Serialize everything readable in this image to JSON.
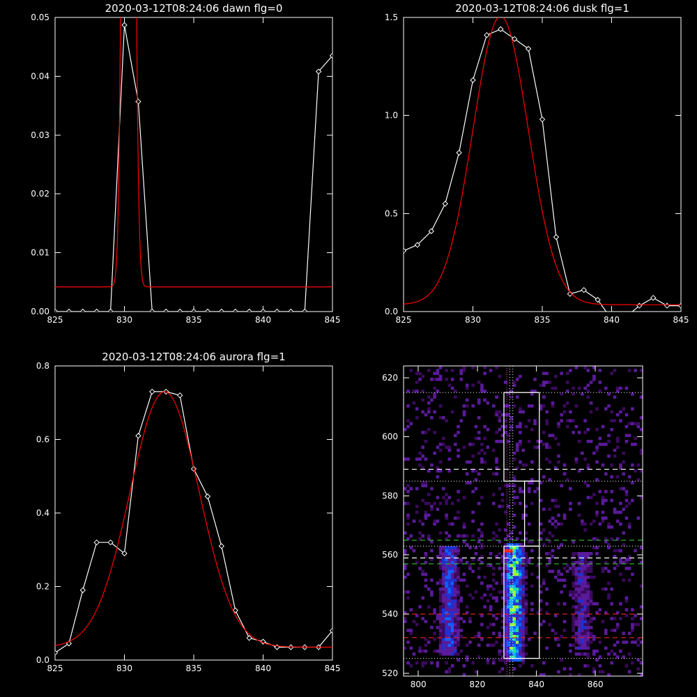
{
  "chart_data": [
    {
      "type": "line",
      "title": "2020-03-12T08:24:06 dawn flg=0",
      "xlim": [
        825,
        845
      ],
      "ylim": [
        0,
        0.05
      ],
      "xticks": [
        825,
        830,
        835,
        840,
        845
      ],
      "xtick_labels": [
        "825",
        "830",
        "835",
        "840",
        "845"
      ],
      "yticks": [
        0,
        0.01,
        0.02,
        0.03,
        0.04,
        0.05
      ],
      "ytick_labels": [
        "0.00",
        "0.01",
        "0.02",
        "0.03",
        "0.04",
        "0.05"
      ],
      "series": [
        {
          "role": "measured",
          "color": "#ffffff",
          "marker": "diamond",
          "x": [
            825,
            826,
            827,
            828,
            829,
            830,
            831,
            832,
            833,
            834,
            835,
            836,
            837,
            838,
            839,
            840,
            841,
            842,
            843,
            844,
            845
          ],
          "y": [
            0,
            0,
            0,
            0,
            0,
            0.0487,
            0.0357,
            0,
            0,
            0,
            0,
            0,
            0,
            0,
            0,
            0,
            0,
            0,
            0,
            0.0408,
            0.0435
          ]
        },
        {
          "role": "fit",
          "color": "#ff0000",
          "model": "gaussian",
          "center": 830.3,
          "sigma": 0.3,
          "amplitude": 0.3,
          "baseline": 0.0042
        }
      ]
    },
    {
      "type": "line",
      "title": "2020-03-12T08:24:06 dusk flg=1",
      "xlim": [
        825,
        845
      ],
      "ylim": [
        0,
        1.5
      ],
      "xticks": [
        825,
        830,
        835,
        840,
        845
      ],
      "xtick_labels": [
        "825",
        "830",
        "835",
        "840",
        "845"
      ],
      "yticks": [
        0,
        0.5,
        1.0,
        1.5
      ],
      "ytick_labels": [
        "0.0",
        "0.5",
        "1.0",
        "1.5"
      ],
      "series": [
        {
          "role": "measured",
          "color": "#ffffff",
          "marker": "diamond",
          "x": [
            825,
            826,
            827,
            828,
            829,
            830,
            831,
            832,
            833,
            834,
            835,
            836,
            837,
            838,
            839,
            840,
            841,
            842,
            843,
            844,
            845
          ],
          "y": [
            0.31,
            0.34,
            0.41,
            0.55,
            0.81,
            1.18,
            1.41,
            1.44,
            1.39,
            1.34,
            0.98,
            0.38,
            0.09,
            0.11,
            0.06,
            -0.04,
            -0.03,
            0.03,
            0.07,
            0.03,
            0.03
          ]
        },
        {
          "role": "fit",
          "color": "#ff0000",
          "model": "gaussian",
          "center": 832.0,
          "sigma": 2.0,
          "amplitude": 1.47,
          "baseline": 0.035
        }
      ]
    },
    {
      "type": "line",
      "title": "2020-03-12T08:24:06 aurora flg=1",
      "xlim": [
        825,
        845
      ],
      "ylim": [
        0,
        0.8
      ],
      "xticks": [
        825,
        830,
        835,
        840,
        845
      ],
      "xtick_labels": [
        "825",
        "830",
        "835",
        "840",
        "845"
      ],
      "yticks": [
        0,
        0.2,
        0.4,
        0.6,
        0.8
      ],
      "ytick_labels": [
        "0.0",
        "0.2",
        "0.4",
        "0.6",
        "0.8"
      ],
      "series": [
        {
          "role": "measured",
          "color": "#ffffff",
          "marker": "diamond",
          "x": [
            825,
            826,
            827,
            828,
            829,
            830,
            831,
            832,
            833,
            834,
            835,
            836,
            837,
            838,
            839,
            840,
            841,
            842,
            843,
            844,
            845
          ],
          "y": [
            0.02,
            0.045,
            0.19,
            0.32,
            0.32,
            0.29,
            0.61,
            0.73,
            0.73,
            0.72,
            0.52,
            0.445,
            0.31,
            0.135,
            0.06,
            0.05,
            0.035,
            0.035,
            0.035,
            0.035,
            0.08
          ]
        },
        {
          "role": "fit",
          "color": "#ff0000",
          "model": "gaussian",
          "center": 832.9,
          "sigma": 2.5,
          "amplitude": 0.695,
          "baseline": 0.035
        }
      ]
    },
    {
      "type": "heatmap",
      "title": "",
      "xlim": [
        795,
        876
      ],
      "ylim": [
        519,
        624
      ],
      "xticks": [
        800,
        820,
        840,
        860
      ],
      "xtick_labels": [
        "800",
        "820",
        "840",
        "860"
      ],
      "yticks": [
        520,
        540,
        560,
        580,
        600,
        620
      ],
      "ytick_labels": [
        "520",
        "540",
        "560",
        "580",
        "600",
        "620"
      ],
      "colormap": [
        "#000000",
        "#3a0a5c",
        "#5a1a9a",
        "#2030d0",
        "#1060ff",
        "#10b0ff",
        "#20e0a0",
        "#a0ff30",
        "#ffff00",
        "#ff2000"
      ],
      "bright_columns": [
        {
          "x_center": 810,
          "y_range": [
            526,
            562
          ],
          "strength": 0.5
        },
        {
          "x_center": 832,
          "y_range": [
            524,
            563
          ],
          "strength": 0.85
        },
        {
          "x_center": 855,
          "y_range": [
            528,
            560
          ],
          "strength": 0.35
        }
      ],
      "peak": {
        "x": 830,
        "y": 561
      },
      "overlays": {
        "white_box_x": [
          829,
          841
        ],
        "white_box_upper_y": [
          585,
          615
        ],
        "white_box_connector_x": [
          836,
          841
        ],
        "white_box_connector_y": [
          563,
          585
        ],
        "white_box_lower_y": [
          525,
          563
        ],
        "dotted_white_h": [
          615,
          585,
          563,
          525
        ],
        "dotted_white_v": [
          831,
          832
        ],
        "dashed_white_h": [
          589,
          559
        ],
        "dashed_green_h": [
          565,
          557
        ],
        "dashed_red_h": [
          540,
          532
        ],
        "dotted_magenta_v": [
          830
        ]
      }
    }
  ]
}
